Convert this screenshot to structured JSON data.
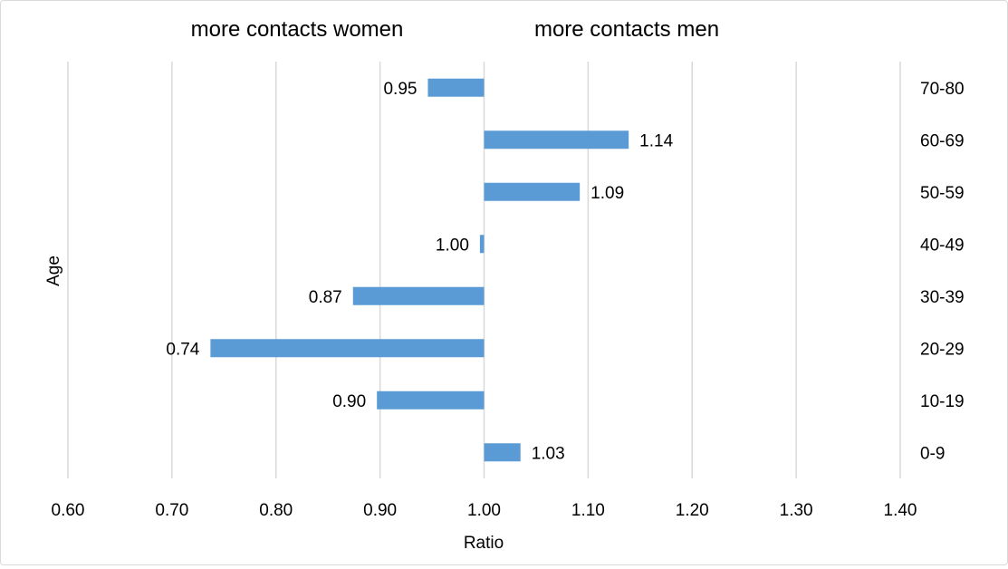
{
  "chart_data": {
    "type": "bar",
    "orientation": "horizontal",
    "annotations": {
      "left": "more contacts women",
      "right": "more contacts men"
    },
    "xlabel": "Ratio",
    "ylabel": "Age",
    "xlim": [
      0.6,
      1.4
    ],
    "baseline": 1.0,
    "x_ticks": [
      "0.60",
      "0.70",
      "0.80",
      "0.90",
      "1.00",
      "1.10",
      "1.20",
      "1.30",
      "1.40"
    ],
    "categories": [
      "0-9",
      "10-19",
      "20-29",
      "30-39",
      "40-49",
      "50-59",
      "60-69",
      "70-80"
    ],
    "values": [
      1.035,
      0.897,
      0.737,
      0.874,
      0.996,
      1.092,
      1.139,
      0.946
    ],
    "data_labels": [
      "1.03",
      "0.90",
      "0.74",
      "0.87",
      "1.00",
      "1.09",
      "1.14",
      "0.95"
    ],
    "grid": "vertical",
    "bar_color": "#5b9bd5",
    "gridline_color": "#d9d9d9"
  }
}
